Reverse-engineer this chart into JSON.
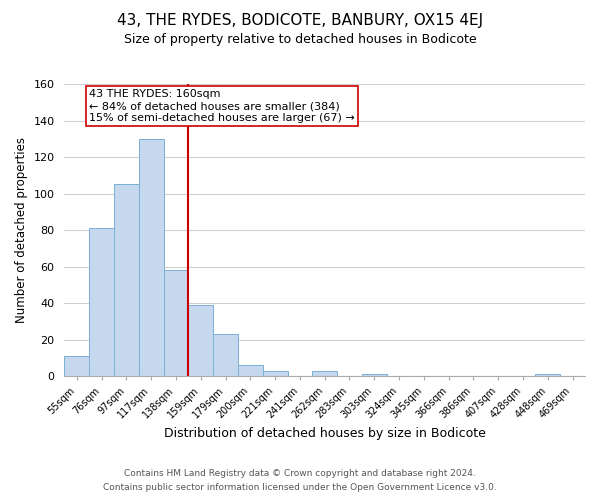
{
  "title": "43, THE RYDES, BODICOTE, BANBURY, OX15 4EJ",
  "subtitle": "Size of property relative to detached houses in Bodicote",
  "xlabel": "Distribution of detached houses by size in Bodicote",
  "ylabel": "Number of detached properties",
  "bar_labels": [
    "55sqm",
    "76sqm",
    "97sqm",
    "117sqm",
    "138sqm",
    "159sqm",
    "179sqm",
    "200sqm",
    "221sqm",
    "241sqm",
    "262sqm",
    "283sqm",
    "303sqm",
    "324sqm",
    "345sqm",
    "366sqm",
    "386sqm",
    "407sqm",
    "428sqm",
    "448sqm",
    "469sqm"
  ],
  "bar_heights": [
    11,
    81,
    105,
    130,
    58,
    39,
    23,
    6,
    3,
    0,
    3,
    0,
    1,
    0,
    0,
    0,
    0,
    0,
    0,
    1,
    0
  ],
  "bar_color": "#c5d8ed",
  "bar_edge_color": "#7bafd4",
  "vline_color": "#cc0000",
  "vline_bar_index": 5,
  "annotation_text": "43 THE RYDES: 160sqm\n← 84% of detached houses are smaller (384)\n15% of semi-detached houses are larger (67) →",
  "annotation_box_facecolor": "#ffffff",
  "annotation_box_edgecolor": "#cc0000",
  "ylim": [
    0,
    160
  ],
  "yticks": [
    0,
    20,
    40,
    60,
    80,
    100,
    120,
    140,
    160
  ],
  "footer_line1": "Contains HM Land Registry data © Crown copyright and database right 2024.",
  "footer_line2": "Contains public sector information licensed under the Open Government Licence v3.0.",
  "background_color": "#ffffff",
  "grid_color": "#d0d0d0"
}
